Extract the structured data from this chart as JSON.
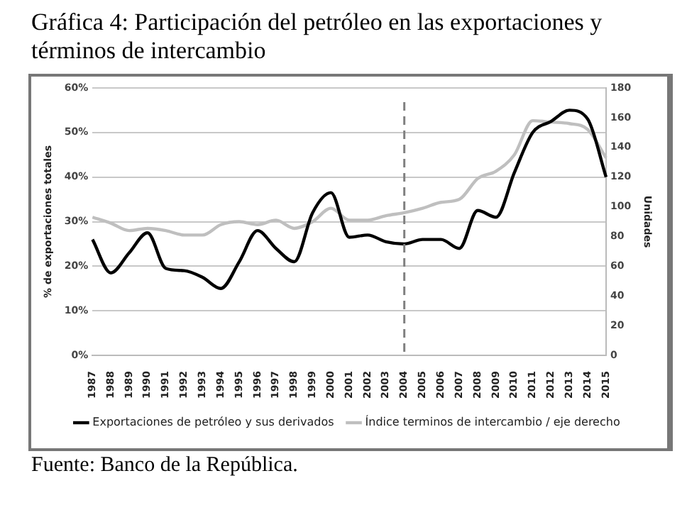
{
  "chart_data": {
    "type": "line",
    "title": "Gráfica 4: Participación del petróleo en las exportaciones y términos de intercambio",
    "categories": [
      "1987",
      "1988",
      "1989",
      "1990",
      "1991",
      "1992",
      "1993",
      "1994",
      "1995",
      "1996",
      "1997",
      "1998",
      "1999",
      "2000",
      "2001",
      "2002",
      "2003",
      "2004",
      "2005",
      "2006",
      "2007",
      "2008",
      "2009",
      "2010",
      "2011",
      "2012",
      "2013",
      "2014",
      "2015"
    ],
    "series": [
      {
        "name": "Exportaciones de petróleo y sus derivados",
        "color": "#000000",
        "values": [
          26,
          18.5,
          23,
          27.5,
          19.5,
          19,
          17.5,
          15,
          21,
          28,
          24,
          21,
          32,
          36.5,
          26.5,
          27,
          25.5,
          25,
          26,
          26,
          24,
          32.5,
          31,
          41,
          50,
          52.5,
          55,
          53,
          40
        ]
      },
      {
        "name": "Índice terminos de intercambio / eje derecho",
        "color": "#bfbfbf",
        "axis": "y2",
        "values": [
          93,
          89,
          84,
          85.5,
          84,
          81,
          81,
          88,
          90,
          88,
          91,
          85.5,
          90,
          99,
          91,
          91,
          94,
          96,
          99,
          103,
          105,
          119,
          124,
          135,
          158,
          157,
          156,
          152,
          133
        ]
      }
    ],
    "ylabel": "% de exportaciones totales",
    "y2label": "Unidades",
    "ylim": [
      0,
      60
    ],
    "yticks": [
      {
        "value": 0,
        "label": "0%"
      },
      {
        "value": 10,
        "label": "10%"
      },
      {
        "value": 20,
        "label": "20%"
      },
      {
        "value": 30,
        "label": "30%"
      },
      {
        "value": 40,
        "label": "40%"
      },
      {
        "value": 50,
        "label": "50%"
      },
      {
        "value": 60,
        "label": "60%"
      }
    ],
    "y2lim": [
      0,
      180
    ],
    "y2ticks": [
      0,
      20,
      40,
      60,
      80,
      100,
      120,
      140,
      160,
      180
    ],
    "ref_lines": [
      {
        "axis": "x",
        "value": "2004",
        "color": "#808080",
        "line_style": "dashed"
      }
    ],
    "grid": "y",
    "legend": "bottom",
    "marker": "none",
    "line_style": "solid",
    "annotations": [
      "Fuente: Banco de la República."
    ]
  }
}
